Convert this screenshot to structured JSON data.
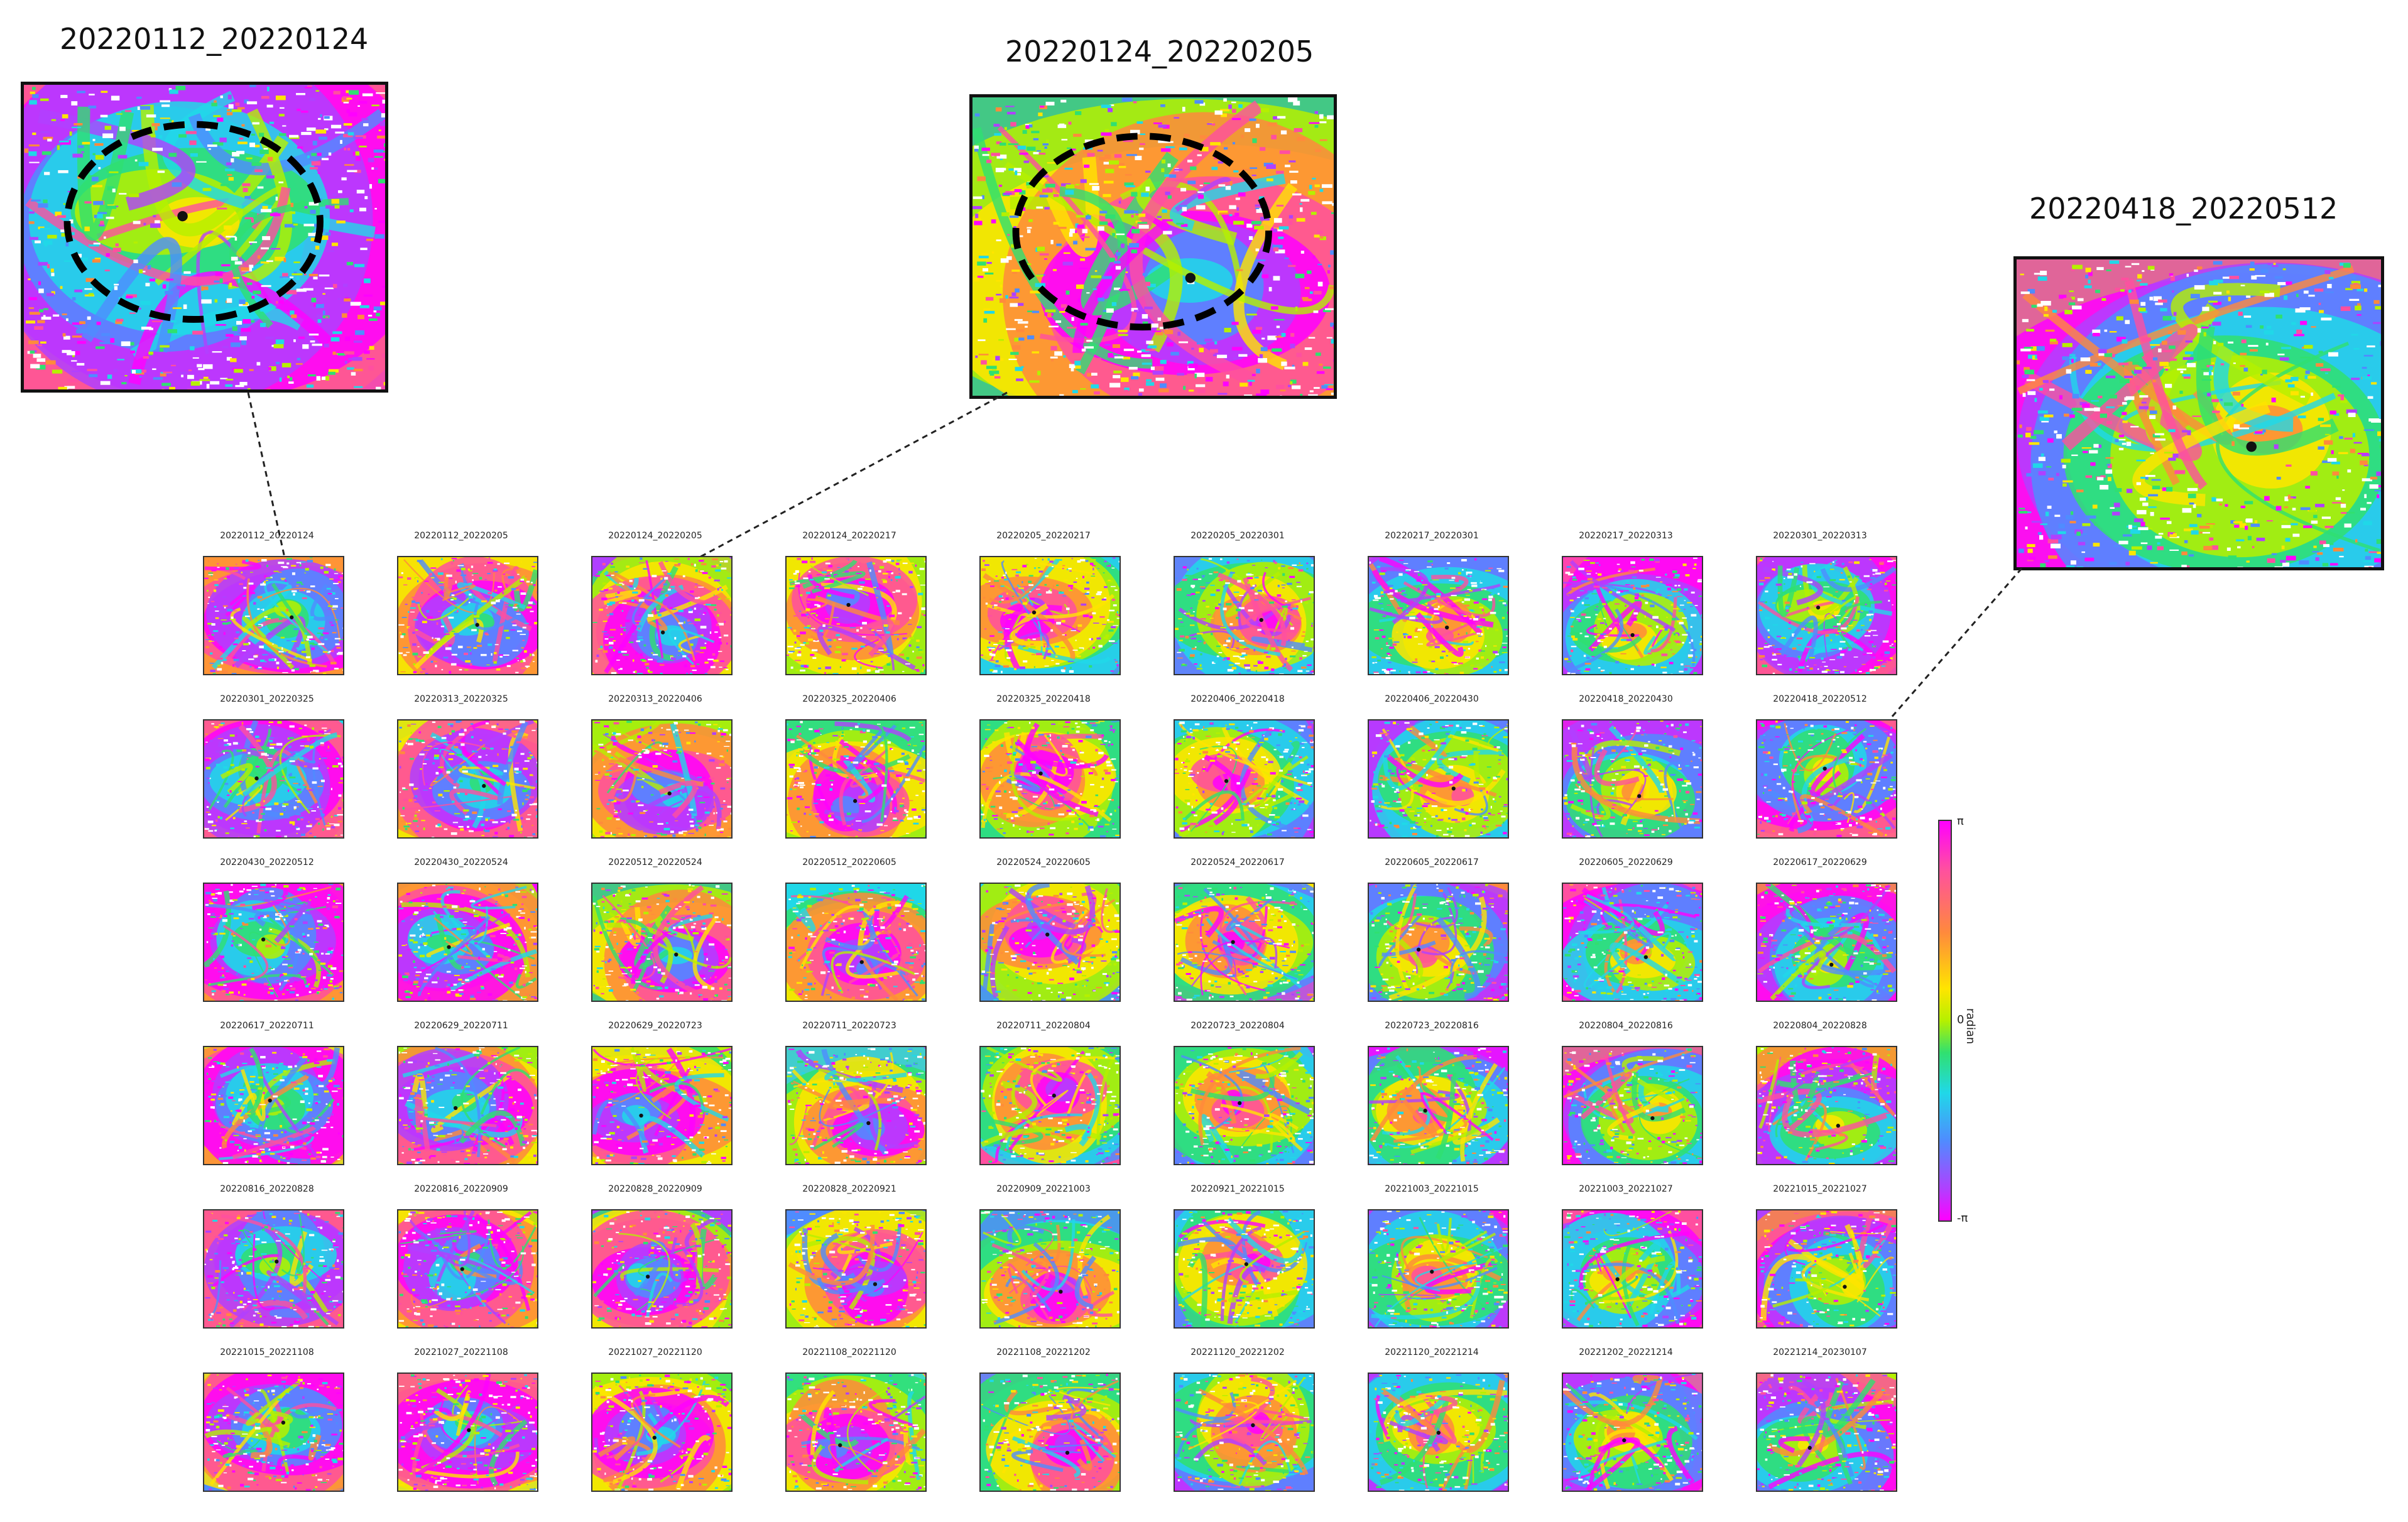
{
  "zooms": [
    {
      "title": "20220112_20220124",
      "seed": 11
    },
    {
      "title": "20220124_20220205",
      "seed": 23
    },
    {
      "title": "20220418_20220512",
      "seed": 37
    }
  ],
  "grid": {
    "labels": [
      [
        "20220112_20220124",
        "20220112_20220205",
        "20220124_20220205",
        "20220124_20220217",
        "20220205_20220217",
        "20220205_20220301",
        "20220217_20220301",
        "20220217_20220313",
        "20220301_20220313"
      ],
      [
        "20220301_20220325",
        "20220313_20220325",
        "20220313_20220406",
        "20220325_20220406",
        "20220325_20220418",
        "20220406_20220418",
        "20220406_20220430",
        "20220418_20220430",
        "20220418_20220512"
      ],
      [
        "20220430_20220512",
        "20220430_20220524",
        "20220512_20220524",
        "20220512_20220605",
        "20220524_20220605",
        "20220524_20220617",
        "20220605_20220617",
        "20220605_20220629",
        "20220617_20220629"
      ],
      [
        "20220617_20220711",
        "20220629_20220711",
        "20220629_20220723",
        "20220711_20220723",
        "20220711_20220804",
        "20220723_20220804",
        "20220723_20220816",
        "20220804_20220816",
        "20220804_20220828"
      ],
      [
        "20220816_20220828",
        "20220816_20220909",
        "20220828_20220909",
        "20220828_20220921",
        "20220909_20221003",
        "20220921_20221015",
        "20221003_20221015",
        "20221003_20221027",
        "20221015_20221027"
      ],
      [
        "20221015_20221108",
        "20221027_20221108",
        "20221027_20221120",
        "20221108_20221120",
        "20221108_20221202",
        "20221120_20221202",
        "20221120_20221214",
        "20221202_20221214",
        "20221214_20230107"
      ]
    ]
  },
  "colorbar": {
    "top_tick": "π",
    "mid_tick": "0",
    "bottom_tick": "-π",
    "label": "radian"
  },
  "colors": {
    "phase": [
      "#ff00ff",
      "#ff4fa0",
      "#ff8a3c",
      "#ffe500",
      "#b5f000",
      "#30e070",
      "#20d8e8",
      "#4f8cff",
      "#b040ff"
    ]
  }
}
